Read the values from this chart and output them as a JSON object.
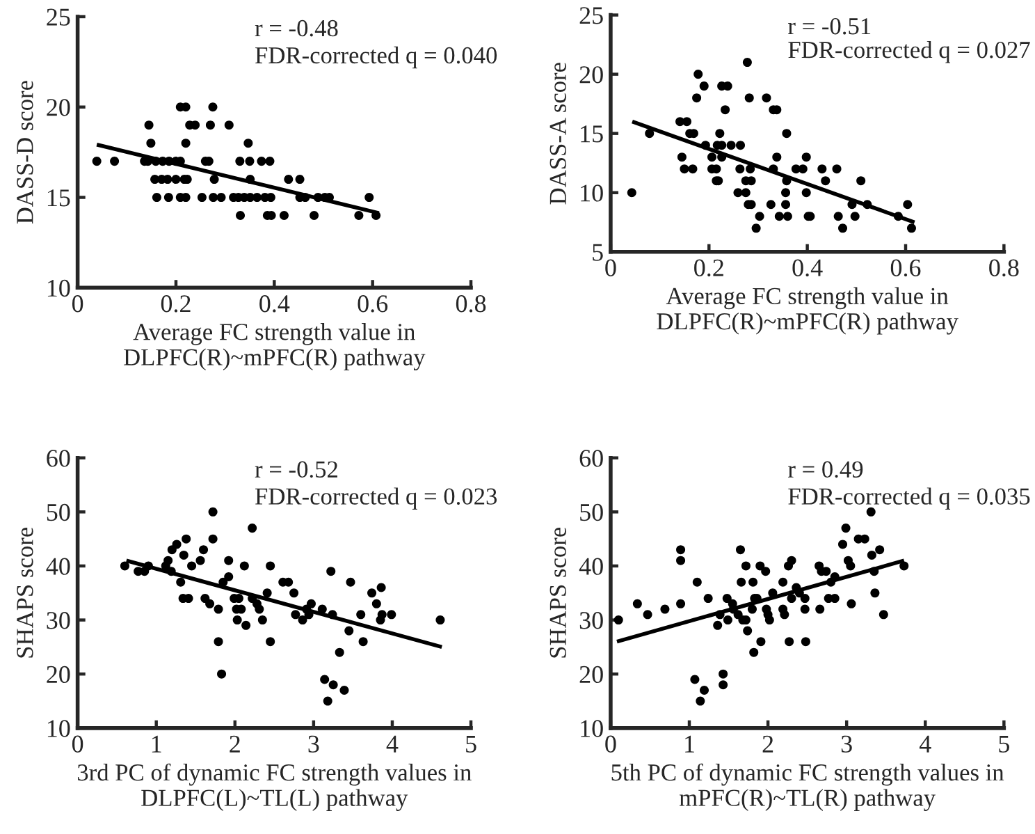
{
  "chart_data": [
    {
      "type": "scatter",
      "xlabel": "Average FC strength value in\nDLPFC(R)~mPFC(R) pathway",
      "ylabel": "DASS-D score",
      "annotations": [
        "r = -0.48",
        "FDR-corrected q = 0.040"
      ],
      "xlim": [
        0,
        0.8
      ],
      "xticks": [
        0,
        0.2,
        0.4,
        0.6,
        0.8
      ],
      "ylim": [
        10,
        25
      ],
      "yticks": [
        10,
        15,
        20,
        25
      ],
      "grid": false,
      "series": [
        {
          "marker": "circle",
          "color": "#000000",
          "x": [
            0.209,
            0.22,
            0.275,
            0.145,
            0.228,
            0.239,
            0.27,
            0.308,
            0.149,
            0.22,
            0.347,
            0.039,
            0.075,
            0.136,
            0.143,
            0.159,
            0.173,
            0.186,
            0.2,
            0.209,
            0.26,
            0.267,
            0.33,
            0.35,
            0.374,
            0.391,
            0.157,
            0.171,
            0.183,
            0.2,
            0.217,
            0.223,
            0.278,
            0.351,
            0.429,
            0.452,
            0.161,
            0.185,
            0.209,
            0.22,
            0.253,
            0.276,
            0.292,
            0.317,
            0.327,
            0.339,
            0.351,
            0.365,
            0.381,
            0.393,
            0.452,
            0.463,
            0.489,
            0.503,
            0.512,
            0.593,
            0.331,
            0.386,
            0.394,
            0.42,
            0.481,
            0.572,
            0.607
          ],
          "values": [
            20,
            20,
            20,
            19,
            19,
            19,
            19,
            19,
            18,
            18,
            18,
            17,
            17,
            17,
            17,
            17,
            17,
            17,
            17,
            17,
            17,
            17,
            17,
            17,
            17,
            17,
            16,
            16,
            16,
            16,
            16,
            16,
            16,
            16,
            16,
            16,
            15,
            15,
            15,
            15,
            15,
            15,
            15,
            15,
            15,
            15,
            15,
            15,
            15,
            15,
            15,
            15,
            15,
            15,
            15,
            15,
            14,
            14,
            14,
            14,
            14,
            14,
            14
          ]
        },
        {
          "type": "line",
          "color": "#000000",
          "x": [
            0.039,
            0.613
          ],
          "values": [
            17.92,
            14.13
          ]
        }
      ]
    },
    {
      "type": "scatter",
      "xlabel": "Average FC strength value in\nDLPFC(R)~mPFC(R) pathway",
      "ylabel": "DASS-A score",
      "annotations": [
        "r = -0.51",
        "FDR-corrected q = 0.027"
      ],
      "xlim": [
        0,
        0.8
      ],
      "xticks": [
        0,
        0.2,
        0.4,
        0.6,
        0.8
      ],
      "ylim": [
        5,
        25
      ],
      "yticks": [
        5,
        10,
        15,
        20,
        25
      ],
      "grid": false,
      "series": [
        {
          "marker": "circle",
          "color": "#000000",
          "x": [
            0.043,
            0.079,
            0.141,
            0.155,
            0.145,
            0.15,
            0.167,
            0.161,
            0.169,
            0.178,
            0.175,
            0.19,
            0.193,
            0.206,
            0.206,
            0.215,
            0.215,
            0.219,
            0.217,
            0.226,
            0.222,
            0.226,
            0.238,
            0.233,
            0.226,
            0.245,
            0.264,
            0.259,
            0.263,
            0.275,
            0.275,
            0.28,
            0.286,
            0.278,
            0.282,
            0.284,
            0.286,
            0.296,
            0.303,
            0.317,
            0.326,
            0.331,
            0.338,
            0.331,
            0.338,
            0.343,
            0.356,
            0.356,
            0.358,
            0.358,
            0.36,
            0.377,
            0.391,
            0.398,
            0.398,
            0.402,
            0.406,
            0.43,
            0.437,
            0.46,
            0.463,
            0.472,
            0.491,
            0.497,
            0.509,
            0.522,
            0.585,
            0.604,
            0.612
          ],
          "values": [
            10,
            15,
            16,
            16,
            13,
            12,
            12,
            15,
            15,
            20,
            18,
            19,
            14,
            13,
            12,
            12,
            11,
            11,
            14,
            14,
            15,
            19,
            19,
            17,
            13,
            14,
            14,
            10,
            12,
            11,
            10,
            9,
            9,
            21,
            18,
            12,
            11,
            7,
            8,
            18,
            9,
            17,
            17,
            12,
            13,
            8,
            10,
            9,
            15,
            11,
            8,
            12,
            12,
            13,
            10,
            8,
            8,
            12,
            11,
            12,
            8,
            7,
            9,
            8,
            11,
            9,
            8,
            9,
            7
          ]
        },
        {
          "type": "line",
          "color": "#000000",
          "x": [
            0.044,
            0.618
          ],
          "values": [
            16.0,
            7.5
          ]
        }
      ]
    },
    {
      "type": "scatter",
      "xlabel": "3rd PC of dynamic FC strength values in\nDLPFC(L)~TL(L) pathway",
      "ylabel": "SHAPS score",
      "annotations": [
        "r = -0.52",
        "FDR-corrected q = 0.023"
      ],
      "xlim": [
        0,
        5
      ],
      "xticks": [
        0,
        1,
        2,
        3,
        4,
        5
      ],
      "ylim": [
        10,
        60
      ],
      "yticks": [
        10,
        20,
        30,
        40,
        50,
        60
      ],
      "grid": false,
      "series": [
        {
          "marker": "circle",
          "color": "#000000",
          "x": [
            0.6,
            0.77,
            0.85,
            0.9,
            1.12,
            1.15,
            1.19,
            1.2,
            1.26,
            1.31,
            1.34,
            1.41,
            1.35,
            1.38,
            1.45,
            1.56,
            1.6,
            1.62,
            1.68,
            1.72,
            1.72,
            1.79,
            1.79,
            1.83,
            1.85,
            1.92,
            1.92,
            1.99,
            2.05,
            2.02,
            2.08,
            2.03,
            2.12,
            2.14,
            2.22,
            2.22,
            2.28,
            2.31,
            2.35,
            2.41,
            2.45,
            2.45,
            2.61,
            2.68,
            2.75,
            2.77,
            2.86,
            2.91,
            2.94,
            2.97,
            3.11,
            3.14,
            3.18,
            3.22,
            3.24,
            3.25,
            3.33,
            3.39,
            3.45,
            3.47,
            3.6,
            3.63,
            3.74,
            3.8,
            3.86,
            3.85,
            3.87,
            3.99,
            4.61
          ],
          "values": [
            40,
            39,
            39,
            40,
            40,
            41,
            39,
            43,
            44,
            37,
            34,
            34,
            42,
            45,
            40,
            41,
            43,
            34,
            33,
            45,
            50,
            32,
            26,
            20,
            37,
            41,
            38,
            34,
            34,
            32,
            32,
            30,
            40,
            29,
            34,
            47,
            33,
            32,
            30,
            35,
            40,
            26,
            37,
            37,
            35,
            31,
            30,
            32,
            31,
            33,
            32,
            19,
            15,
            39,
            31,
            18,
            24,
            17,
            28,
            37,
            31,
            26,
            35,
            33,
            36,
            30,
            31,
            31,
            30
          ]
        },
        {
          "type": "line",
          "color": "#000000",
          "x": [
            0.62,
            4.63
          ],
          "values": [
            41.0,
            25.0
          ]
        }
      ]
    },
    {
      "type": "scatter",
      "xlabel": "5th PC of dynamic FC strength values in\nmPFC(R)~TL(R) pathway",
      "ylabel": "SHAPS score",
      "annotations": [
        "r = 0.49",
        "FDR-corrected q = 0.035"
      ],
      "xlim": [
        0,
        5
      ],
      "xticks": [
        0,
        1,
        2,
        3,
        4,
        5
      ],
      "ylim": [
        10,
        60
      ],
      "yticks": [
        10,
        20,
        30,
        40,
        50,
        60
      ],
      "grid": false,
      "series": [
        {
          "marker": "circle",
          "color": "#000000",
          "x": [
            0.1,
            0.34,
            0.47,
            0.69,
            0.89,
            0.89,
            0.89,
            1.07,
            1.1,
            1.14,
            1.19,
            1.24,
            1.36,
            1.39,
            1.43,
            1.43,
            1.48,
            1.49,
            1.55,
            1.56,
            1.62,
            1.65,
            1.66,
            1.68,
            1.72,
            1.72,
            1.74,
            1.8,
            1.81,
            1.82,
            1.83,
            1.86,
            1.9,
            1.91,
            1.97,
            1.98,
            2.0,
            2.02,
            2.06,
            2.19,
            2.19,
            2.21,
            2.26,
            2.3,
            2.27,
            2.3,
            2.36,
            2.4,
            2.47,
            2.47,
            2.48,
            2.65,
            2.68,
            2.74,
            2.66,
            2.8,
            2.77,
            2.85,
            2.85,
            2.95,
            2.99,
            3.02,
            3.05,
            3.06,
            3.15,
            3.23,
            3.31,
            3.32,
            3.35,
            3.36,
            3.42,
            3.47,
            3.73
          ],
          "values": [
            30,
            33,
            31,
            32,
            43,
            41,
            33,
            19,
            37,
            15,
            17,
            34,
            29,
            31,
            20,
            18,
            34,
            30,
            33,
            32,
            31,
            43,
            37,
            30,
            30,
            40,
            28,
            32,
            37,
            24,
            34,
            34,
            40,
            26,
            39,
            32,
            31,
            30,
            35,
            37,
            32,
            31,
            40,
            41,
            26,
            34,
            36,
            35,
            34,
            32,
            26,
            40,
            39,
            39,
            32,
            37,
            34,
            34,
            38,
            44,
            47,
            41,
            40,
            33,
            45,
            45,
            50,
            42,
            39,
            35,
            43,
            31,
            40
          ]
        },
        {
          "type": "line",
          "color": "#000000",
          "x": [
            0.08,
            3.73
          ],
          "values": [
            26.0,
            41.0
          ]
        }
      ]
    }
  ]
}
